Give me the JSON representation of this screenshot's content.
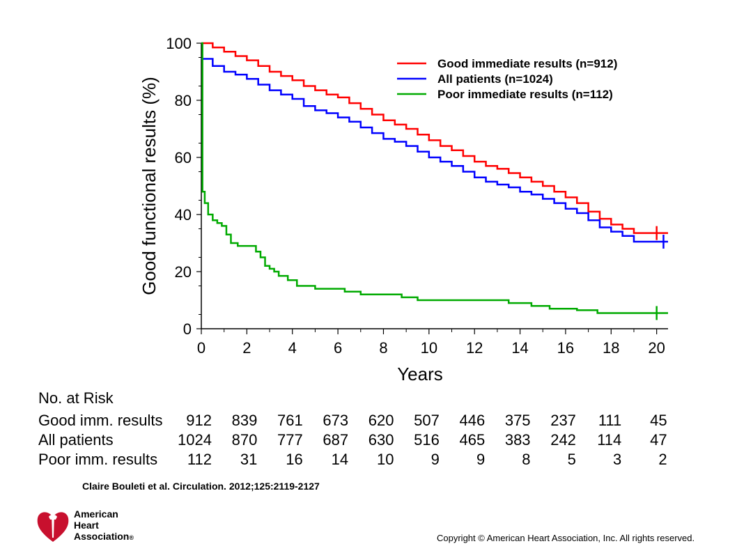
{
  "chart_data": {
    "type": "line",
    "subtype": "kaplan-meier step",
    "xlabel": "Years",
    "ylabel": "Good functional results (%)",
    "xlim": [
      0,
      20.5
    ],
    "ylim": [
      0,
      100
    ],
    "x_ticks": [
      0,
      2,
      4,
      6,
      8,
      10,
      12,
      14,
      16,
      18,
      20
    ],
    "y_ticks": [
      0,
      20,
      40,
      60,
      80,
      100
    ],
    "legend_position": "top-right",
    "series": [
      {
        "name": "Good immediate results (n=912)",
        "color": "#ff0000",
        "x": [
          0,
          0.5,
          1,
          1.5,
          2,
          2.5,
          3,
          3.5,
          4,
          4.5,
          5,
          5.5,
          6,
          6.5,
          7,
          7.5,
          8,
          8.5,
          9,
          9.5,
          10,
          10.5,
          11,
          11.5,
          12,
          12.5,
          13,
          13.5,
          14,
          14.5,
          15,
          15.5,
          16,
          16.5,
          17,
          17.5,
          18,
          18.5,
          19,
          19.5,
          20,
          20.5
        ],
        "y": [
          100,
          98.5,
          97,
          95.5,
          94,
          92,
          90,
          88.5,
          87,
          85,
          83.5,
          82,
          81,
          79,
          77,
          75,
          73,
          71.5,
          70,
          68,
          66,
          64,
          62.5,
          60.5,
          58.5,
          57,
          56,
          54.5,
          53,
          51.5,
          50,
          48,
          46,
          44,
          41,
          38.5,
          36.5,
          35,
          33.5,
          33.5,
          33.5,
          33.5
        ],
        "censor_mark_x": 20
      },
      {
        "name": "All patients (n=1024)",
        "color": "#0000ff",
        "x": [
          0,
          0.5,
          1,
          1.5,
          2,
          2.5,
          3,
          3.5,
          4,
          4.5,
          5,
          5.5,
          6,
          6.5,
          7,
          7.5,
          8,
          8.5,
          9,
          9.5,
          10,
          10.5,
          11,
          11.5,
          12,
          12.5,
          13,
          13.5,
          14,
          14.5,
          15,
          15.5,
          16,
          16.5,
          17,
          17.5,
          18,
          18.5,
          19,
          19.5,
          20,
          20.5
        ],
        "y": [
          94.5,
          92,
          90,
          89,
          87.5,
          85.5,
          83.5,
          82,
          80.5,
          78,
          76.5,
          75.5,
          74,
          72.5,
          70.5,
          68.5,
          66.5,
          65.5,
          64,
          62,
          60,
          58.5,
          57,
          55,
          53,
          51.5,
          50.5,
          49.5,
          48,
          47,
          45.5,
          44,
          42,
          40.5,
          38,
          35.5,
          34,
          32.5,
          30.5,
          30.5,
          30.5,
          30.5
        ],
        "censor_mark_x": 20.3
      },
      {
        "name": "Poor immediate results (n=112)",
        "color": "#00aa00",
        "x": [
          0,
          0.05,
          0.15,
          0.3,
          0.5,
          0.7,
          0.9,
          1.1,
          1.3,
          1.6,
          2.0,
          2.4,
          2.6,
          2.8,
          3.0,
          3.2,
          3.4,
          3.8,
          4.2,
          5.0,
          6.0,
          6.3,
          7.0,
          7.8,
          8.8,
          9.5,
          10.5,
          11.5,
          12.5,
          13.5,
          14.5,
          15.3,
          16.5,
          17.4,
          18.5,
          19.5,
          20.5
        ],
        "y": [
          100,
          48,
          44,
          40,
          38,
          37,
          36,
          33,
          30,
          29,
          29,
          27,
          25,
          22,
          21,
          20,
          18.5,
          17,
          15,
          14,
          14,
          13,
          12,
          12,
          11,
          10,
          10,
          10,
          10,
          9,
          8,
          7,
          6.5,
          5.5,
          5.5,
          5.5,
          5.5
        ],
        "censor_mark_x": 20
      }
    ]
  },
  "risk_table": {
    "title": "No. at Risk",
    "rows": [
      {
        "label": "Good imm. results",
        "values": [
          "912",
          "839",
          "761",
          "673",
          "620",
          "507",
          "446",
          "375",
          "237",
          "111",
          "45"
        ]
      },
      {
        "label": "All patients",
        "values": [
          "1024",
          "870",
          "777",
          "687",
          "630",
          "516",
          "465",
          "383",
          "242",
          "114",
          "47"
        ]
      },
      {
        "label": "Poor imm. results",
        "values": [
          "112",
          "31",
          "16",
          "14",
          "10",
          "9",
          "9",
          "8",
          "5",
          "3",
          "2"
        ]
      }
    ]
  },
  "citation": "Claire Bouleti et al. Circulation. 2012;125:2119-2127",
  "copyright": "Copyright © American Heart Association, Inc. All rights reserved.",
  "logo": {
    "line1": "American",
    "line2": "Heart",
    "line3": "Association",
    "mark": "®",
    "color": "#c8102e"
  }
}
